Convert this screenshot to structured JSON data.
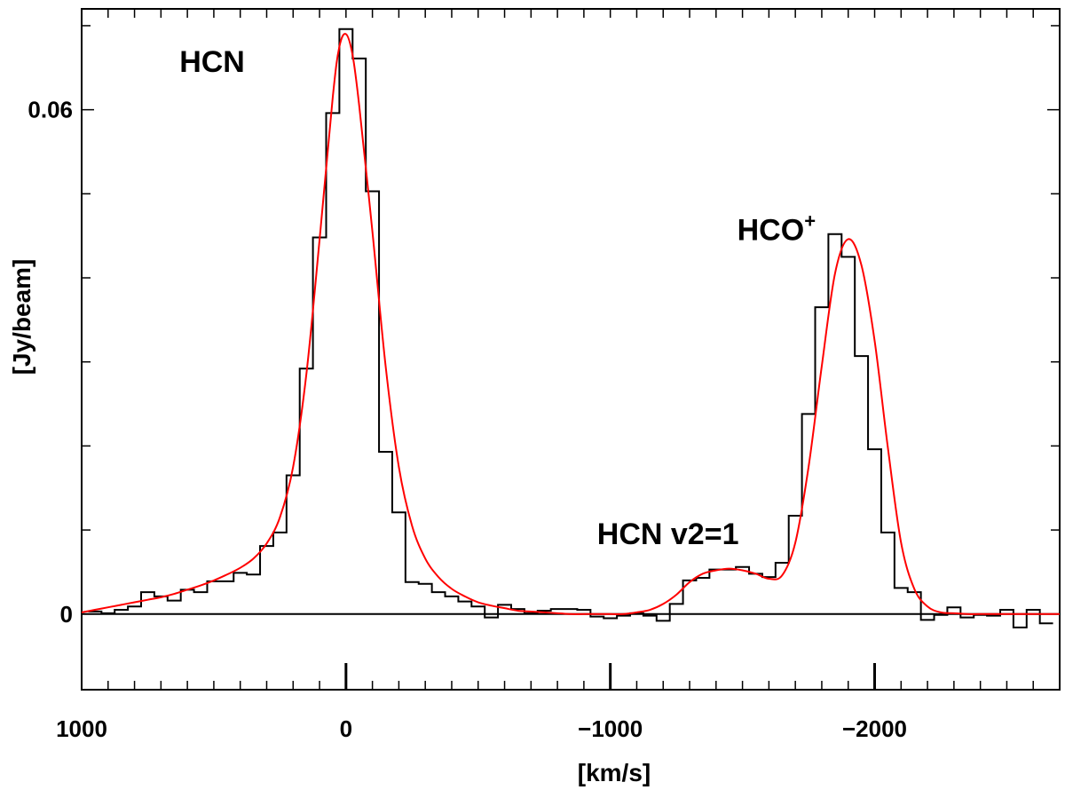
{
  "chart_data": {
    "type": "line",
    "xlabel": "[km/s]",
    "ylabel": "[Jy/beam]",
    "xlim": [
      1000,
      -2700
    ],
    "ylim": [
      -0.009,
      0.072
    ],
    "x_ticks": [
      1000,
      0,
      -1000,
      -2000
    ],
    "x_tick_labels": [
      "1000",
      "0",
      "−1000",
      "−2000"
    ],
    "y_ticks": [
      0,
      0.06
    ],
    "y_tick_labels": [
      "0",
      "0.06"
    ],
    "baseline": 0,
    "line_markers_x": [
      0,
      -1000,
      -2000
    ],
    "annotations": [
      {
        "text": "HCN",
        "x": 630,
        "y": 0.0645
      },
      {
        "text": "HCN v2=1",
        "x": -950,
        "y": 0.0083
      },
      {
        "text": "HCO",
        "sup": "+",
        "x": -1480,
        "y": 0.0445
      }
    ],
    "series": [
      {
        "style": "histogram",
        "color": "#000000",
        "x": [
          950,
          900,
          850,
          800,
          750,
          700,
          650,
          600,
          550,
          500,
          450,
          400,
          350,
          300,
          250,
          200,
          150,
          100,
          50,
          0,
          -50,
          -100,
          -150,
          -200,
          -250,
          -300,
          -350,
          -400,
          -450,
          -500,
          -550,
          -600,
          -650,
          -700,
          -750,
          -800,
          -850,
          -900,
          -950,
          -1000,
          -1050,
          -1100,
          -1150,
          -1200,
          -1250,
          -1300,
          -1350,
          -1400,
          -1450,
          -1500,
          -1550,
          -1600,
          -1650,
          -1700,
          -1750,
          -1800,
          -1850,
          -1900,
          -1950,
          -2000,
          -2050,
          -2100,
          -2150,
          -2200,
          -2250,
          -2300,
          -2350,
          -2400,
          -2450,
          -2500,
          -2550,
          -2600,
          -2650
        ],
        "y": [
          0.0003,
          0.0001,
          0.0005,
          0.0009,
          0.0026,
          0.0021,
          0.0016,
          0.0029,
          0.0026,
          0.0039,
          0.0039,
          0.0049,
          0.0047,
          0.0081,
          0.0097,
          0.0165,
          0.0292,
          0.0448,
          0.0596,
          0.0696,
          0.0661,
          0.0503,
          0.0193,
          0.0121,
          0.0038,
          0.0036,
          0.0026,
          0.0021,
          0.0015,
          0.0009,
          -0.0004,
          0.0011,
          0.0006,
          0.0001,
          0.0004,
          0.0006,
          0.0006,
          0.0005,
          -0.0003,
          -0.0005,
          -0.0002,
          0.0001,
          -0.0002,
          -0.0008,
          0.0012,
          0.004,
          0.0043,
          0.0053,
          0.0053,
          0.0056,
          0.0048,
          0.0044,
          0.0061,
          0.0117,
          0.0238,
          0.0365,
          0.0452,
          0.0425,
          0.0307,
          0.0196,
          0.0097,
          0.0031,
          0.0026,
          -0.0007,
          -0.0001,
          0.0008,
          -0.0004,
          -0.0001,
          -0.0002,
          0.0005,
          -0.0016,
          0.0005,
          -0.0011
        ]
      },
      {
        "style": "smooth",
        "color": "#ff0000",
        "x": [
          1000,
          950,
          900,
          850,
          800,
          750,
          700,
          650,
          600,
          550,
          500,
          450,
          400,
          350,
          300,
          250,
          200,
          150,
          100,
          50,
          25,
          0,
          -25,
          -50,
          -100,
          -150,
          -200,
          -250,
          -300,
          -350,
          -400,
          -450,
          -500,
          -550,
          -600,
          -650,
          -700,
          -750,
          -800,
          -850,
          -900,
          -950,
          -1000,
          -1050,
          -1100,
          -1150,
          -1200,
          -1250,
          -1300,
          -1350,
          -1400,
          -1450,
          -1500,
          -1550,
          -1600,
          -1650,
          -1700,
          -1750,
          -1800,
          -1850,
          -1900,
          -1950,
          -2000,
          -2050,
          -2100,
          -2150,
          -2200,
          -2250,
          -2300,
          -2350,
          -2400,
          -2500,
          -2600,
          -2700
        ],
        "y": [
          0.0002,
          0.0005,
          0.0008,
          0.0011,
          0.0014,
          0.0017,
          0.002,
          0.0024,
          0.0029,
          0.0034,
          0.004,
          0.0047,
          0.0055,
          0.0066,
          0.0084,
          0.0115,
          0.0175,
          0.0285,
          0.0445,
          0.0615,
          0.0675,
          0.069,
          0.0665,
          0.0605,
          0.0455,
          0.0295,
          0.0175,
          0.0105,
          0.0066,
          0.0044,
          0.003,
          0.0021,
          0.0014,
          0.001,
          0.0007,
          0.0004,
          0.0003,
          0.0002,
          0.0001,
          0.0,
          0.0,
          0.0,
          0.0,
          0.0,
          0.0002,
          0.0005,
          0.0012,
          0.0023,
          0.0038,
          0.0048,
          0.0052,
          0.0054,
          0.0052,
          0.0048,
          0.0042,
          0.0046,
          0.0085,
          0.0175,
          0.0295,
          0.0405,
          0.0446,
          0.0415,
          0.0325,
          0.0198,
          0.0085,
          0.003,
          0.0009,
          0.0002,
          0.0001,
          0.0,
          0.0,
          0.0,
          0.0,
          0.0
        ]
      }
    ]
  }
}
